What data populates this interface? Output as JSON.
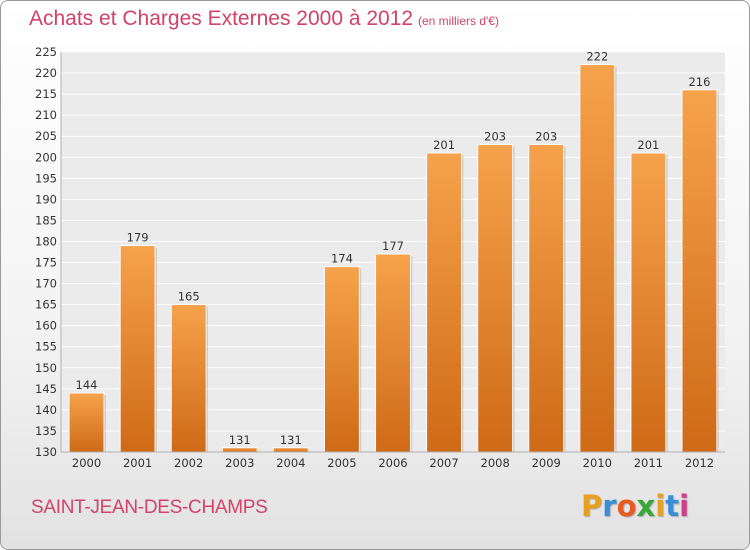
{
  "chart_data": {
    "type": "bar",
    "title": "Achats et Charges Externes 2000 à 2012",
    "subtitle": "(en milliers d'€)",
    "categories": [
      "2000",
      "2001",
      "2002",
      "2003",
      "2004",
      "2005",
      "2006",
      "2007",
      "2008",
      "2009",
      "2010",
      "2011",
      "2012"
    ],
    "values": [
      144,
      179,
      165,
      131,
      131,
      174,
      177,
      201,
      203,
      203,
      222,
      201,
      216
    ],
    "value_labels": [
      "144",
      "179",
      "165",
      "131",
      "131",
      "174",
      "177",
      "201",
      "203",
      "203",
      "222",
      "201",
      "216"
    ],
    "ylim": [
      130,
      225
    ],
    "yticks": [
      "130",
      "135",
      "140",
      "145",
      "150",
      "155",
      "160",
      "165",
      "170",
      "175",
      "180",
      "185",
      "190",
      "195",
      "200",
      "205",
      "210",
      "215",
      "220",
      "225"
    ],
    "grid": true,
    "bar_color_top": "#f6a24c",
    "bar_color_bottom": "#cf6a17"
  },
  "footer": {
    "commune": "SAINT-JEAN-DES-CHAMPS"
  },
  "brand": {
    "letters": [
      "P",
      "r",
      "o",
      "x",
      "i",
      "t",
      "i"
    ],
    "colors": [
      "#e8a020",
      "#3a8ed8",
      "#e85a20",
      "#3aa838",
      "#e8a020",
      "#3a8ed8",
      "#d43c8c"
    ]
  }
}
